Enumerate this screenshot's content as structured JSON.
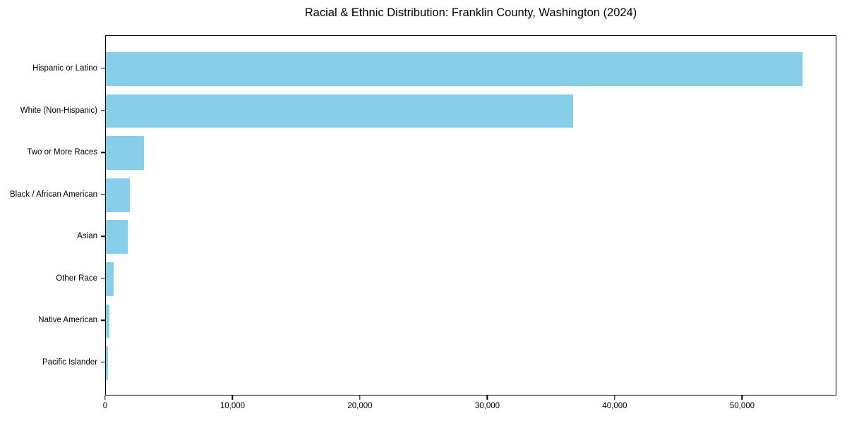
{
  "chart_data": {
    "type": "bar",
    "orientation": "horizontal",
    "title": "Racial & Ethnic Distribution: Franklin County, Washington (2024)",
    "categories": [
      "Hispanic or Latino",
      "White (Non-Hispanic)",
      "Two or More Races",
      "Black / African American",
      "Asian",
      "Other Race",
      "Native American",
      "Pacific Islander"
    ],
    "values": [
      54700,
      36700,
      3000,
      1900,
      1700,
      600,
      250,
      180
    ],
    "bar_color": "#87CEEB",
    "xlabel": "",
    "ylabel": "",
    "xlim": [
      0,
      57400
    ],
    "x_ticks": [
      0,
      10000,
      20000,
      30000,
      40000,
      50000
    ],
    "x_tick_labels": [
      "0",
      "10,000",
      "20,000",
      "30,000",
      "40,000",
      "50,000"
    ],
    "grid": false,
    "legend": null,
    "frame": "full-box",
    "text_color": "#000000",
    "background_color": "#ffffff"
  }
}
